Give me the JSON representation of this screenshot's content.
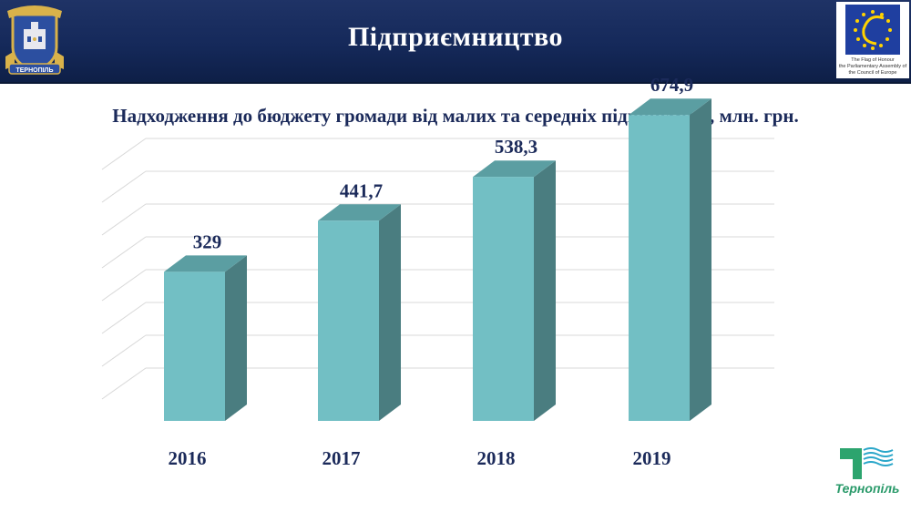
{
  "header": {
    "title": "Підприємництво",
    "crest_label": "ТЕРНОПІЛЬ",
    "coe_caption": "The Flag of Honour\nthe Parliamentary Assembly of\nthe Council of Europe"
  },
  "colors": {
    "header_bg": "#15295a",
    "bar_front": "#72bfc4",
    "bar_top": "#5b9ea2",
    "bar_side": "#4a7d80",
    "text_dark": "#1b2a5a",
    "logo_green": "#2a9a6a"
  },
  "chart_data": {
    "type": "bar",
    "title": "Надходження до бюджету громади від малих та середніх підприємств, млн. грн.",
    "categories": [
      "2016",
      "2017",
      "2018",
      "2019"
    ],
    "values": [
      329,
      441.7,
      538.3,
      674.9
    ],
    "data_labels": [
      "329",
      "441,7",
      "538,3",
      "674,9"
    ],
    "ylim": [
      0,
      800
    ],
    "grid": true,
    "style": "3d-column"
  },
  "footer_logo": {
    "label": "Тернопіль"
  }
}
